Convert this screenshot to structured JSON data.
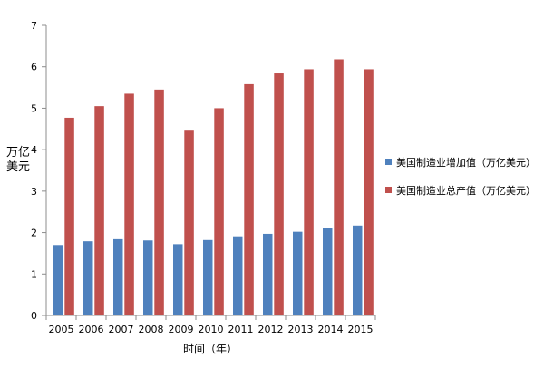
{
  "chart_data": {
    "type": "bar",
    "categories": [
      "2005",
      "2006",
      "2007",
      "2008",
      "2009",
      "2010",
      "2011",
      "2012",
      "2013",
      "2014",
      "2015"
    ],
    "series": [
      {
        "name": "美国制造业增加值（万亿美元）",
        "color": "#4f81bd",
        "values": [
          1.7,
          1.79,
          1.84,
          1.81,
          1.72,
          1.82,
          1.91,
          1.97,
          2.02,
          2.1,
          2.17
        ]
      },
      {
        "name": "美国制造业总产值（万亿美元）",
        "color": "#c0504d",
        "values": [
          4.77,
          5.05,
          5.35,
          5.45,
          4.48,
          5.0,
          5.58,
          5.84,
          5.94,
          6.18,
          5.94
        ]
      }
    ],
    "xlabel": "时间（年）",
    "ylabel": "万亿美元",
    "ylim": [
      0,
      7
    ],
    "yticks": [
      0,
      1,
      2,
      3,
      4,
      5,
      6,
      7
    ],
    "grid": false,
    "legend_position": "right"
  }
}
